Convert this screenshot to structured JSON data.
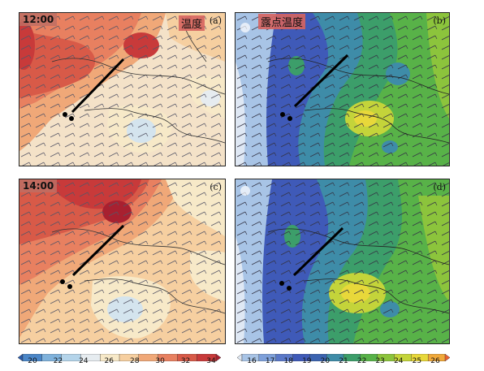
{
  "panels": {
    "a": {
      "time_label": "12:00",
      "title": "温度",
      "letter": "(a)"
    },
    "b": {
      "title": "露点温度",
      "letter": "(b)"
    },
    "c": {
      "time_label": "14:00",
      "letter": "(c)"
    },
    "d": {
      "letter": "(d)"
    }
  },
  "colorbar_temperature": {
    "ticks": [
      "20",
      "22",
      "24",
      "26",
      "28",
      "30",
      "32",
      "34"
    ],
    "colors": [
      "#2a5aa8",
      "#4a86c8",
      "#7fb2dc",
      "#b4d4ea",
      "#e6ecf0",
      "#f7e9c8",
      "#f6cfa0",
      "#f0a878",
      "#e88060",
      "#d85a48",
      "#c83a3a",
      "#a82030"
    ]
  },
  "colorbar_dewpoint": {
    "ticks": [
      "16",
      "17",
      "18",
      "19",
      "20",
      "21",
      "22",
      "23",
      "24",
      "25",
      "26"
    ],
    "colors": [
      "#dfe8f4",
      "#a8c4e6",
      "#7ea0da",
      "#5a78c8",
      "#3f5ab8",
      "#3b63b0",
      "#3e8ca8",
      "#3c9e6a",
      "#58b248",
      "#8cc43c",
      "#c4d43a",
      "#e8d83a",
      "#f0a83a",
      "#e8602e"
    ]
  }
}
